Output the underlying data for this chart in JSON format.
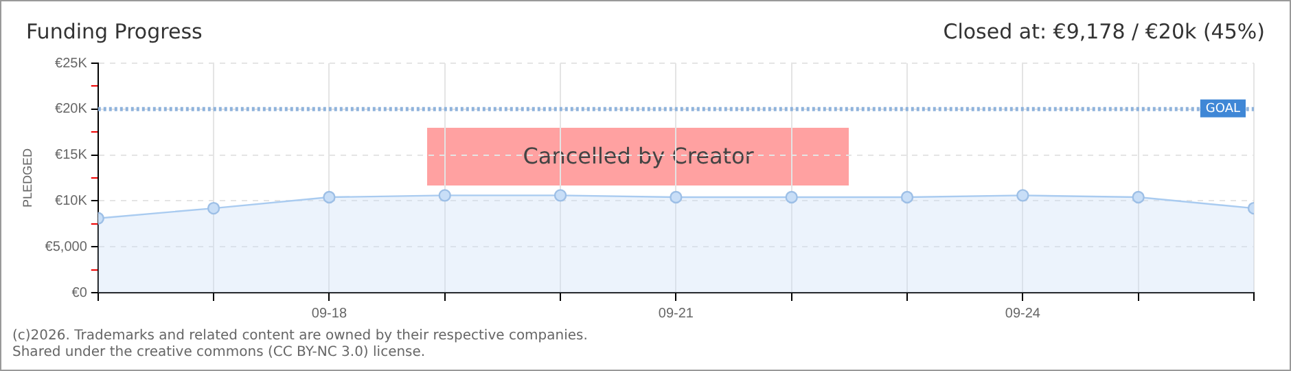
{
  "chart_data": {
    "type": "area",
    "title": "Funding Progress",
    "subtitle": "Closed at: €9,178 / €20k (45%)",
    "ylabel": "PLEDGED",
    "x": [
      "--09-16",
      "--09-17",
      "--09-18",
      "--09-19",
      "--09-20",
      "--09-21",
      "--09-22",
      "--09-23",
      "--09-24",
      "--09-25",
      "--09-26"
    ],
    "series": [
      {
        "color": "#a9cbf0",
        "values": [
          8100,
          9200,
          10400,
          10600,
          10600,
          10400,
          10400,
          10400,
          10600,
          10400,
          9200
        ]
      }
    ],
    "xlim": [
      "--09-16",
      "--09-26"
    ],
    "xticks": [
      {
        "value": "--09-16",
        "label": null
      },
      {
        "value": "--09-17",
        "label": null
      },
      {
        "value": "--09-18",
        "label": "09-18"
      },
      {
        "value": "--09-19",
        "label": null
      },
      {
        "value": "--09-20",
        "label": null
      },
      {
        "value": "--09-21",
        "label": "09-21"
      },
      {
        "value": "--09-22",
        "label": null
      },
      {
        "value": "--09-23",
        "label": null
      },
      {
        "value": "--09-24",
        "label": "09-24"
      },
      {
        "value": "--09-25",
        "label": null
      },
      {
        "value": "--09-26",
        "label": null
      }
    ],
    "ylim": [
      0,
      25000
    ],
    "yticks": [
      {
        "value": 0,
        "label": "€0"
      },
      {
        "value": 2500,
        "label": null
      },
      {
        "value": 5000,
        "label": "€5,000"
      },
      {
        "value": 7500,
        "label": null
      },
      {
        "value": 10000,
        "label": "€10K"
      },
      {
        "value": 12500,
        "label": null
      },
      {
        "value": 15000,
        "label": "€15K"
      },
      {
        "value": 17500,
        "label": null
      },
      {
        "value": 20000,
        "label": "€20K"
      },
      {
        "value": 22500,
        "label": null
      },
      {
        "value": 25000,
        "label": "€25K"
      }
    ],
    "ref_lines": [
      {
        "axis": "y",
        "value": 20000,
        "label": "GOAL",
        "color": "#8fb3dc",
        "line_style": "dotted"
      }
    ],
    "annotations": [
      "Cancelled by Creator",
      "(c)2026. Trademarks and related content are owned by their respective companies.",
      "Shared under the creative commons (CC BY-NC 3.0) license."
    ],
    "grid": true,
    "legend": false,
    "marker": "circle",
    "line_style": "solid"
  }
}
